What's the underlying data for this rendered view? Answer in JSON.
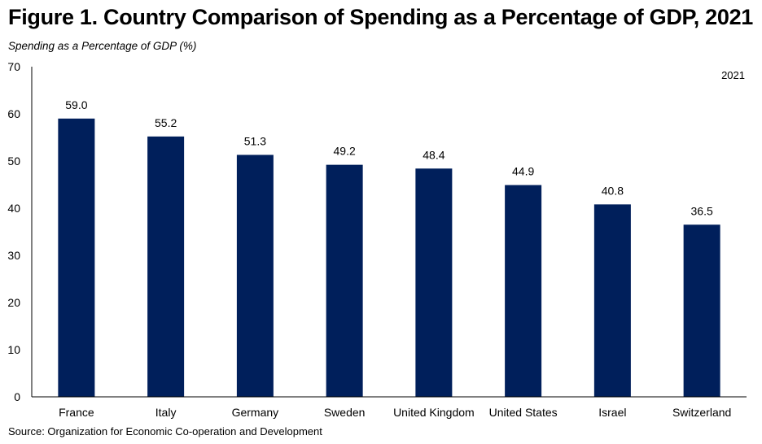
{
  "title": "Figure 1. Country Comparison of Spending as a Percentage of GDP, 2021",
  "subtitle": "Spending as a Percentage of GDP (%)",
  "source": "Source: Organization for Economic Co-operation and Development",
  "colors": {
    "bar": "#001f5b",
    "axis": "#000000"
  },
  "chart_data": {
    "type": "bar",
    "title": "Figure 1. Country Comparison of Spending as a Percentage of GDP, 2021",
    "ylabel": "Spending as a Percentage of GDP (%)",
    "xlabel": "",
    "annotation": "2021",
    "categories": [
      "France",
      "Italy",
      "Germany",
      "Sweden",
      "United Kingdom",
      "United States",
      "Israel",
      "Switzerland"
    ],
    "values": [
      59.0,
      55.2,
      51.3,
      49.2,
      48.4,
      44.9,
      40.8,
      36.5
    ],
    "value_labels": [
      "59.0",
      "55.2",
      "51.3",
      "49.2",
      "48.4",
      "44.9",
      "40.8",
      "36.5"
    ],
    "ylim": [
      0,
      70
    ],
    "yticks": [
      0,
      10,
      20,
      30,
      40,
      50,
      60,
      70
    ],
    "grid": false,
    "legend": "none"
  }
}
